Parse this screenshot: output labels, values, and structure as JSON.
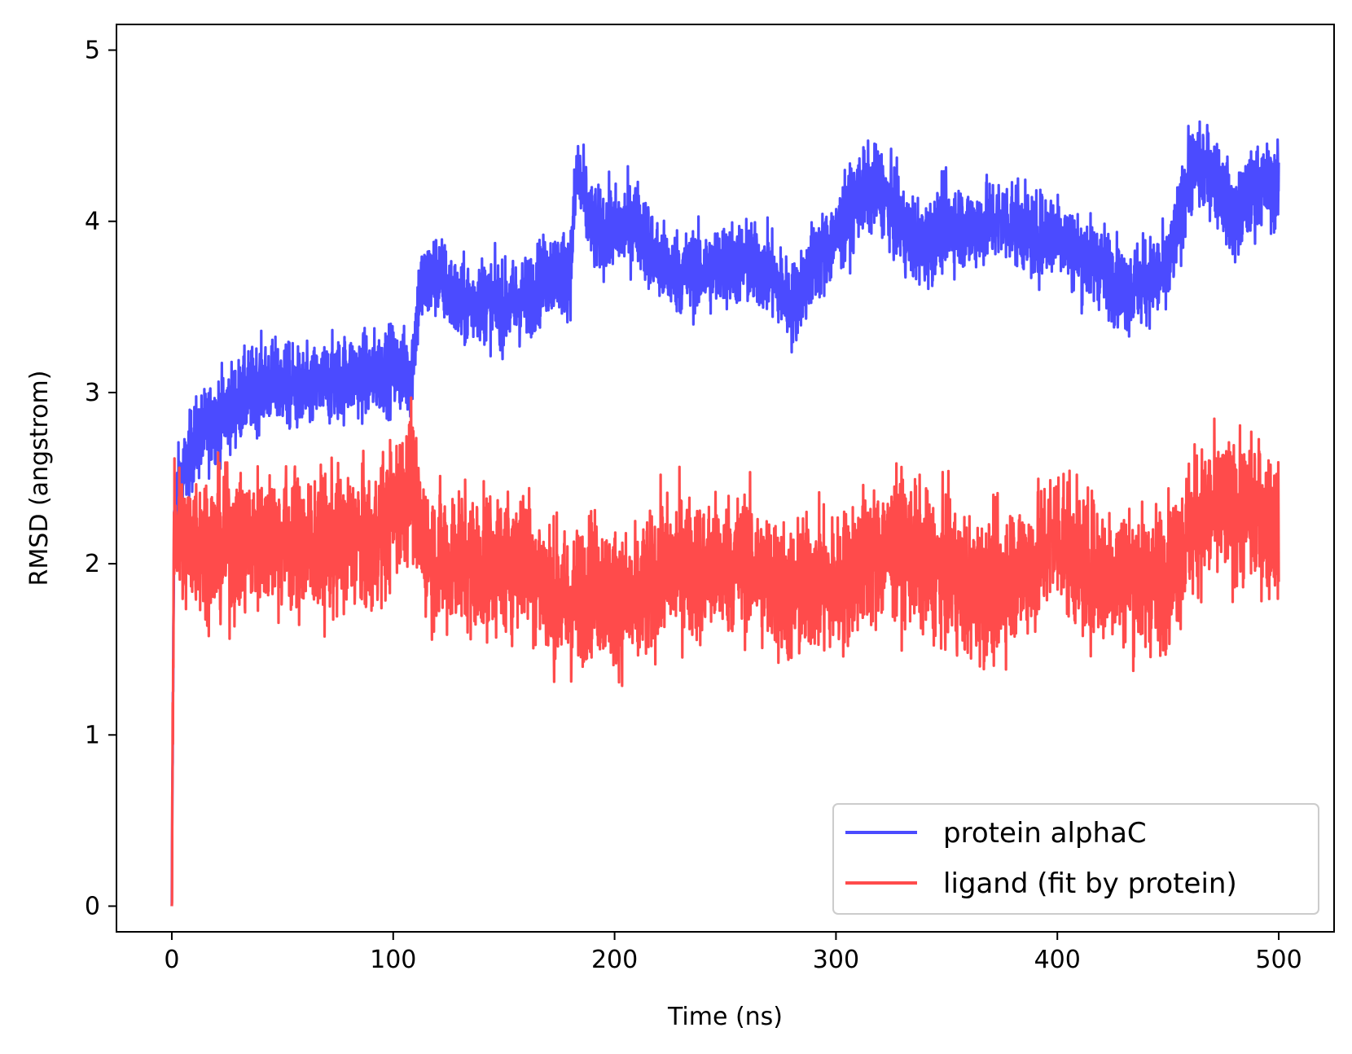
{
  "chart_data": {
    "type": "line",
    "title": "",
    "xlabel": "Time (ns)",
    "ylabel": "RMSD (angstrom)",
    "xlim": [
      -25,
      525
    ],
    "ylim": [
      -0.15,
      5.15
    ],
    "xticks": [
      0,
      100,
      200,
      300,
      400,
      500
    ],
    "yticks": [
      0,
      1,
      2,
      3,
      4,
      5
    ],
    "grid": false,
    "legend": {
      "position": "lower-right"
    },
    "series": [
      {
        "name": "protein alphaC",
        "color": "#4b4bff",
        "x": [
          0,
          1,
          2,
          5,
          10,
          20,
          30,
          40,
          50,
          60,
          70,
          80,
          90,
          100,
          108,
          112,
          120,
          130,
          140,
          150,
          160,
          170,
          180,
          183,
          190,
          200,
          210,
          220,
          230,
          240,
          250,
          260,
          270,
          280,
          290,
          300,
          310,
          320,
          330,
          340,
          350,
          360,
          370,
          380,
          390,
          400,
          410,
          420,
          430,
          440,
          450,
          460,
          470,
          480,
          490,
          500
        ],
        "y": [
          0,
          2.2,
          2.4,
          2.5,
          2.7,
          2.85,
          2.95,
          3.05,
          3.05,
          3.0,
          3.05,
          3.1,
          3.1,
          3.15,
          3.1,
          3.6,
          3.7,
          3.5,
          3.55,
          3.5,
          3.55,
          3.7,
          3.7,
          4.3,
          3.95,
          3.95,
          4.0,
          3.75,
          3.7,
          3.7,
          3.75,
          3.75,
          3.7,
          3.5,
          3.75,
          3.9,
          4.15,
          4.2,
          3.95,
          3.85,
          4.0,
          3.95,
          4.0,
          4.0,
          3.9,
          3.95,
          3.8,
          3.75,
          3.6,
          3.65,
          3.7,
          4.3,
          4.3,
          4.0,
          4.2,
          4.2
        ],
        "noise": 0.12
      },
      {
        "name": "ligand (fit by protein)",
        "color": "#ff4b4b",
        "x": [
          0,
          1,
          2,
          5,
          10,
          20,
          30,
          40,
          50,
          60,
          70,
          80,
          90,
          100,
          108,
          112,
          120,
          130,
          140,
          150,
          160,
          170,
          180,
          190,
          200,
          210,
          220,
          230,
          240,
          250,
          260,
          270,
          280,
          290,
          300,
          310,
          320,
          330,
          340,
          350,
          360,
          370,
          380,
          390,
          400,
          410,
          420,
          430,
          440,
          450,
          460,
          470,
          480,
          490,
          500
        ],
        "y": [
          0,
          2.3,
          2.2,
          2.1,
          2.15,
          2.1,
          2.1,
          2.15,
          2.15,
          2.1,
          2.1,
          2.15,
          2.1,
          2.3,
          2.5,
          2.2,
          2.0,
          2.05,
          2.0,
          2.0,
          2.05,
          1.85,
          1.75,
          1.9,
          1.8,
          1.75,
          1.95,
          2.0,
          1.95,
          2.0,
          2.0,
          1.9,
          1.8,
          1.9,
          1.85,
          2.0,
          2.05,
          2.1,
          2.0,
          1.95,
          1.85,
          1.85,
          1.95,
          2.0,
          2.2,
          2.0,
          1.95,
          1.95,
          1.9,
          1.95,
          2.2,
          2.3,
          2.3,
          2.3,
          2.2
        ],
        "noise": 0.2
      }
    ]
  }
}
